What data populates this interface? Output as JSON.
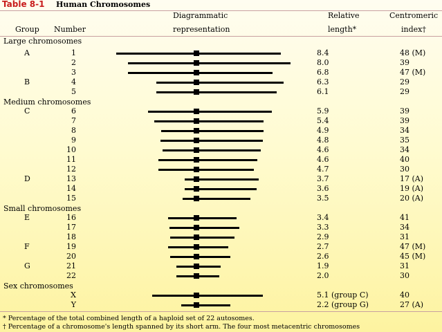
{
  "table": {
    "number": "Table 8-1",
    "title": "Human Chromosomes",
    "headers": {
      "group": "Group",
      "number": "Number",
      "diagram_line1": "Diagrammatic",
      "diagram_line2": "representation",
      "length_line1": "Relative",
      "length_line2": "length*",
      "index_line1": "Centromeric",
      "index_line2": "index†"
    },
    "sections": [
      "Large chromosomes",
      "Medium chromosomes",
      "Small chromosomes",
      "Sex chromosomes"
    ],
    "rows": [
      {
        "group": "A",
        "number": "1",
        "length": "8.4",
        "index": "48 (M)",
        "left": 8.0,
        "right": 8.4
      },
      {
        "group": "",
        "number": "2",
        "length": "8.0",
        "index": "39",
        "left": 6.8,
        "right": 9.4
      },
      {
        "group": "",
        "number": "3",
        "length": "6.8",
        "index": "47 (M)",
        "left": 6.8,
        "right": 7.6
      },
      {
        "group": "B",
        "number": "4",
        "length": "6.3",
        "index": "29",
        "left": 4.0,
        "right": 8.7
      },
      {
        "group": "",
        "number": "5",
        "length": "6.1",
        "index": "29",
        "left": 4.0,
        "right": 8.0
      },
      {
        "group": "C",
        "number": "6",
        "length": "5.9",
        "index": "39",
        "left": 4.8,
        "right": 7.5
      },
      {
        "group": "",
        "number": "7",
        "length": "5.4",
        "index": "39",
        "left": 4.2,
        "right": 6.7
      },
      {
        "group": "",
        "number": "8",
        "length": "4.9",
        "index": "34",
        "left": 3.5,
        "right": 6.7
      },
      {
        "group": "",
        "number": "9",
        "length": "4.8",
        "index": "35",
        "left": 3.6,
        "right": 6.6
      },
      {
        "group": "",
        "number": "10",
        "length": "4.6",
        "index": "34",
        "left": 3.4,
        "right": 6.4
      },
      {
        "group": "",
        "number": "11",
        "length": "4.6",
        "index": "40",
        "left": 3.8,
        "right": 6.1
      },
      {
        "group": "",
        "number": "12",
        "length": "4.7",
        "index": "30",
        "left": 3.8,
        "right": 5.7
      },
      {
        "group": "D",
        "number": "13",
        "length": "3.7",
        "index": "17 (A)",
        "left": 1.2,
        "right": 6.2
      },
      {
        "group": "",
        "number": "14",
        "length": "3.6",
        "index": "19 (A)",
        "left": 1.2,
        "right": 6.0
      },
      {
        "group": "",
        "number": "15",
        "length": "3.5",
        "index": "20 (A)",
        "left": 1.4,
        "right": 5.4
      },
      {
        "group": "E",
        "number": "16",
        "length": "3.4",
        "index": "41",
        "left": 2.8,
        "right": 4.0
      },
      {
        "group": "",
        "number": "17",
        "length": "3.3",
        "index": "34",
        "left": 2.7,
        "right": 4.3
      },
      {
        "group": "",
        "number": "18",
        "length": "2.9",
        "index": "31",
        "left": 2.6,
        "right": 3.8
      },
      {
        "group": "F",
        "number": "19",
        "length": "2.7",
        "index": "47 (M)",
        "left": 2.8,
        "right": 3.2
      },
      {
        "group": "",
        "number": "20",
        "length": "2.6",
        "index": "45 (M)",
        "left": 2.6,
        "right": 3.4
      },
      {
        "group": "G",
        "number": "21",
        "length": "1.9",
        "index": "31",
        "left": 2.0,
        "right": 2.4
      },
      {
        "group": "",
        "number": "22",
        "length": "2.0",
        "index": "30",
        "left": 2.0,
        "right": 2.3
      },
      {
        "group": "",
        "number": "X",
        "length": "5.1 (group C)",
        "index": "40",
        "left": 4.4,
        "right": 6.6
      },
      {
        "group": "",
        "number": "Y",
        "length": "2.2 (group G)",
        "index": "27 (A)",
        "left": 1.5,
        "right": 3.4
      }
    ],
    "footnotes": [
      "* Percentage of the total combined length of a haploid set of 22 autosomes.",
      "†  Percentage of a chromosome's length spanned by its short arm. The four most metacentric chromosomes"
    ]
  }
}
